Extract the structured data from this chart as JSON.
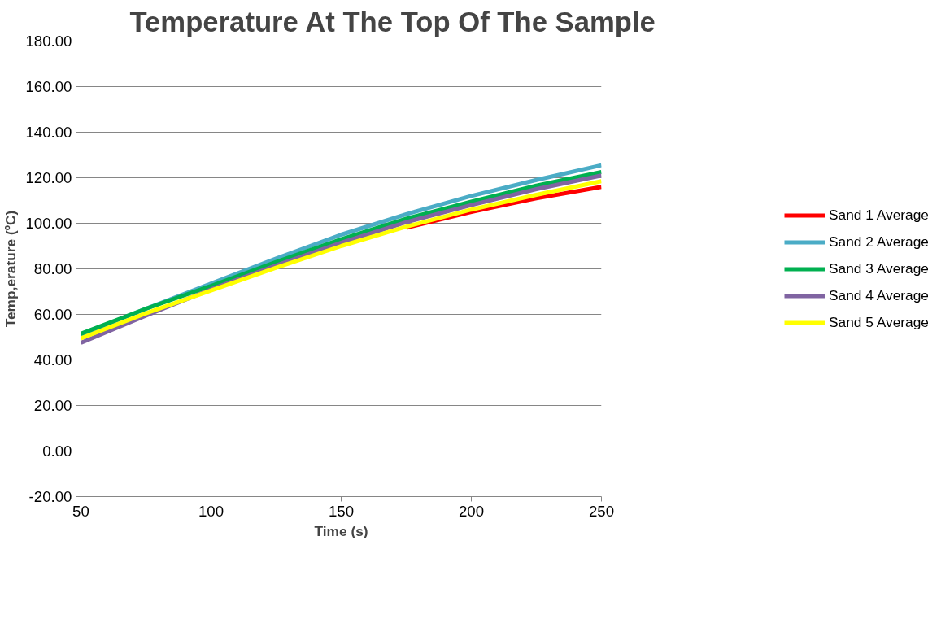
{
  "chart_data": {
    "type": "line",
    "title": "Temperature At The Top Of The Sample",
    "xlabel": "Time (s)",
    "ylabel": "Temp,erature (ºC)",
    "x": [
      50,
      75,
      100,
      125,
      150,
      175,
      200,
      225,
      250
    ],
    "series": [
      {
        "name": "Sand 1 Average",
        "color": "#ff0000",
        "values": [
          null,
          null,
          null,
          null,
          null,
          98,
          105,
          111,
          116
        ]
      },
      {
        "name": "Sand 2 Average",
        "color": "#4bacc6",
        "values": [
          51,
          62.5,
          73.5,
          84.5,
          95,
          104,
          112,
          119,
          125.5
        ]
      },
      {
        "name": "Sand 3 Average",
        "color": "#00b050",
        "values": [
          51.5,
          62.5,
          72.5,
          83,
          93,
          102,
          109.5,
          116.5,
          122.5
        ]
      },
      {
        "name": "Sand 4 Average",
        "color": "#8064a2",
        "values": [
          47.5,
          59.5,
          71,
          81.5,
          91.5,
          100.5,
          108,
          115,
          121
        ]
      },
      {
        "name": "Sand 5 Average",
        "color": "#ffff00",
        "values": [
          49.5,
          60.5,
          70.5,
          80.5,
          90,
          98.5,
          106,
          112.5,
          118.5
        ]
      }
    ],
    "xlim": [
      50,
      250
    ],
    "xticks": [
      50,
      100,
      150,
      200,
      250
    ],
    "ylim": [
      -20,
      180
    ],
    "yticks": [
      {
        "value": -20,
        "label": "-20.00"
      },
      {
        "value": 0,
        "label": "0.00"
      },
      {
        "value": 20,
        "label": "20.00"
      },
      {
        "value": 40,
        "label": "40.00"
      },
      {
        "value": 60,
        "label": "60.00"
      },
      {
        "value": 80,
        "label": "80.00"
      },
      {
        "value": 100,
        "label": "100.00"
      },
      {
        "value": 120,
        "label": "120.00"
      },
      {
        "value": 140,
        "label": "140.00"
      },
      {
        "value": 160,
        "label": "160.00"
      },
      {
        "value": 180,
        "label": "180.00"
      }
    ],
    "grid": "y",
    "legend": "right",
    "marker": "none",
    "line_style": "solid"
  }
}
